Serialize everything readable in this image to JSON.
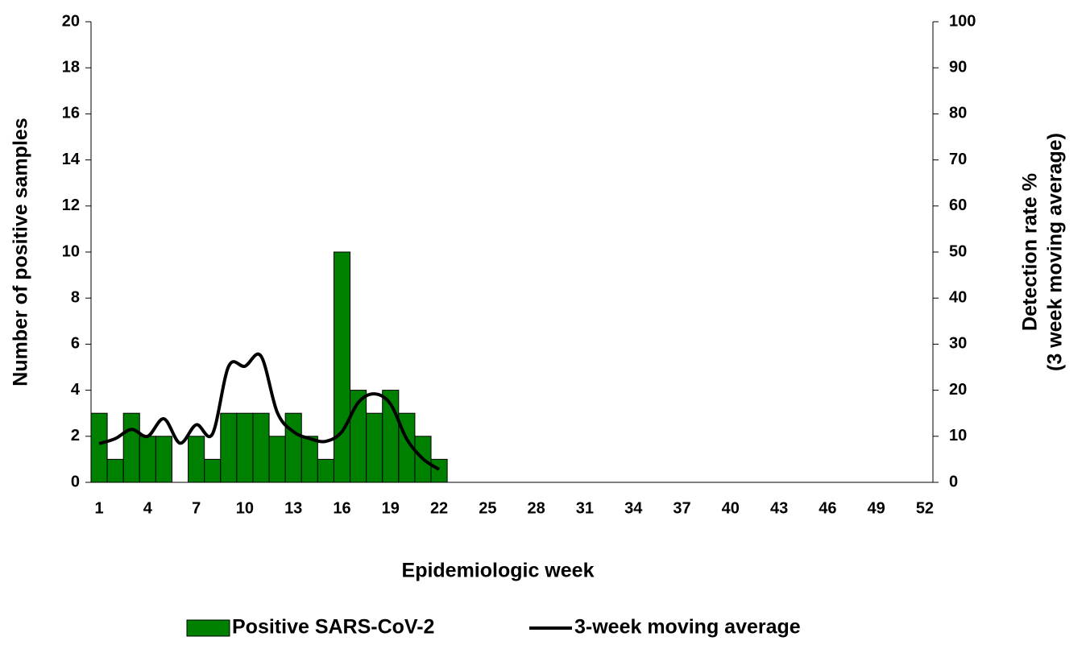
{
  "chart_data": {
    "type": "bar_line",
    "x_label": "Epidemiologic week",
    "y_label": "Number of positive samples",
    "y2_label": [
      "Detection rate %",
      "(3 week moving average)"
    ],
    "categories": [
      "1",
      null,
      null,
      "4",
      null,
      null,
      "7",
      null,
      null,
      "10",
      null,
      null,
      "13",
      null,
      null,
      "16",
      null,
      null,
      "19",
      null,
      null,
      "22",
      null,
      null,
      "25",
      null,
      null,
      "28",
      null,
      null,
      "31",
      null,
      null,
      "34",
      null,
      null,
      "37",
      null,
      null,
      "40",
      null,
      null,
      "43",
      null,
      null,
      "46",
      null,
      null,
      "49",
      null,
      null,
      "52"
    ],
    "ylim": [
      0,
      20
    ],
    "yticks": [
      0,
      2,
      4,
      6,
      8,
      10,
      12,
      14,
      16,
      18,
      20
    ],
    "y2lim": [
      0,
      100
    ],
    "y2ticks": [
      0,
      10,
      20,
      30,
      40,
      50,
      60,
      70,
      80,
      90,
      100
    ],
    "legend": "bottom",
    "series": [
      {
        "name": "Positive SARS-CoV-2",
        "type": "bar",
        "color": "#008000",
        "values": [
          3,
          1,
          3,
          2,
          2,
          0,
          2,
          1,
          3,
          3,
          3,
          2,
          3,
          2,
          1,
          10,
          4,
          3,
          4,
          3,
          2,
          1,
          null,
          null,
          null,
          null,
          null,
          null,
          null,
          null,
          null,
          null,
          null,
          null,
          null,
          null,
          null,
          null,
          null,
          null,
          null,
          null,
          null,
          null,
          null,
          null,
          null,
          null,
          null,
          null,
          null,
          null
        ]
      },
      {
        "name": "3-week moving average",
        "type": "line",
        "axis": "y2",
        "color": "#000000",
        "values": [
          8.4,
          9.5,
          11.5,
          10,
          13.8,
          8.5,
          12.5,
          10.5,
          25.2,
          25.2,
          27.4,
          15.2,
          11,
          9.5,
          8.9,
          11,
          17.3,
          19.2,
          17,
          9.4,
          5.1,
          2.8,
          null,
          null,
          null,
          null,
          null,
          null,
          null,
          null,
          null,
          null,
          null,
          null,
          null,
          null,
          null,
          null,
          null,
          null,
          null,
          null,
          null,
          null,
          null,
          null,
          null,
          null,
          null,
          null,
          null,
          null
        ]
      }
    ]
  }
}
